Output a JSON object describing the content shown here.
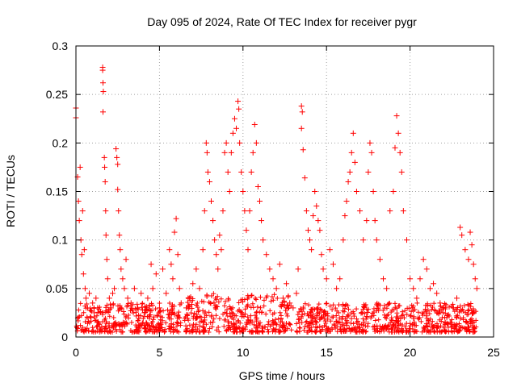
{
  "chart_data": {
    "type": "scatter",
    "title": "Day 095 of 2024, Rate Of TEC Index for receiver pygr",
    "xlabel": "GPS time / hours",
    "ylabel": "ROTI / TECUs",
    "xlim": [
      0,
      25
    ],
    "ylim": [
      0,
      0.3
    ],
    "xticks": [
      0,
      5,
      10,
      15,
      20,
      25
    ],
    "xtick_labels": [
      "0",
      "5",
      "10",
      "15",
      "20",
      "25"
    ],
    "yticks": [
      0,
      0.05,
      0.1,
      0.15,
      0.2,
      0.25,
      0.3
    ],
    "ytick_labels": [
      "0",
      "0.05",
      "0.1",
      "0.15",
      "0.2",
      "0.25",
      "0.3"
    ],
    "grid": true,
    "marker": "+",
    "marker_color": "#ff0000",
    "series": [
      {
        "name": "ROTI",
        "points": [
          [
            0.0,
            0.236
          ],
          [
            0.0,
            0.226
          ],
          [
            0.1,
            0.165
          ],
          [
            0.15,
            0.14
          ],
          [
            0.2,
            0.12
          ],
          [
            0.25,
            0.175
          ],
          [
            0.3,
            0.1
          ],
          [
            0.35,
            0.085
          ],
          [
            0.4,
            0.13
          ],
          [
            0.45,
            0.065
          ],
          [
            0.5,
            0.09
          ],
          [
            0.55,
            0.05
          ],
          [
            0.6,
            0.04
          ],
          [
            0.7,
            0.03
          ],
          [
            0.8,
            0.045
          ],
          [
            0.9,
            0.02
          ],
          [
            1.0,
            0.035
          ],
          [
            1.1,
            0.025
          ],
          [
            1.2,
            0.04
          ],
          [
            1.3,
            0.03
          ],
          [
            1.6,
            0.278
          ],
          [
            1.6,
            0.275
          ],
          [
            1.62,
            0.262
          ],
          [
            1.64,
            0.253
          ],
          [
            1.62,
            0.232
          ],
          [
            1.7,
            0.185
          ],
          [
            1.72,
            0.175
          ],
          [
            1.75,
            0.16
          ],
          [
            1.78,
            0.13
          ],
          [
            1.8,
            0.105
          ],
          [
            1.85,
            0.08
          ],
          [
            1.9,
            0.06
          ],
          [
            2.0,
            0.04
          ],
          [
            2.1,
            0.03
          ],
          [
            2.2,
            0.045
          ],
          [
            2.3,
            0.05
          ],
          [
            2.4,
            0.194
          ],
          [
            2.45,
            0.185
          ],
          [
            2.5,
            0.178
          ],
          [
            2.5,
            0.152
          ],
          [
            2.55,
            0.13
          ],
          [
            2.6,
            0.105
          ],
          [
            2.65,
            0.09
          ],
          [
            2.7,
            0.07
          ],
          [
            2.8,
            0.06
          ],
          [
            2.9,
            0.05
          ],
          [
            3.0,
            0.08
          ],
          [
            3.1,
            0.04
          ],
          [
            3.3,
            0.035
          ],
          [
            3.5,
            0.05
          ],
          [
            3.7,
            0.03
          ],
          [
            3.9,
            0.045
          ],
          [
            4.1,
            0.025
          ],
          [
            4.3,
            0.04
          ],
          [
            4.5,
            0.075
          ],
          [
            4.6,
            0.05
          ],
          [
            4.8,
            0.065
          ],
          [
            5.0,
            0.03
          ],
          [
            5.2,
            0.07
          ],
          [
            5.4,
            0.045
          ],
          [
            5.6,
            0.09
          ],
          [
            5.7,
            0.075
          ],
          [
            5.8,
            0.06
          ],
          [
            5.9,
            0.108
          ],
          [
            6.0,
            0.122
          ],
          [
            6.1,
            0.085
          ],
          [
            6.2,
            0.05
          ],
          [
            6.3,
            0.035
          ],
          [
            6.6,
            0.03
          ],
          [
            6.8,
            0.04
          ],
          [
            7.0,
            0.055
          ],
          [
            7.2,
            0.07
          ],
          [
            7.4,
            0.05
          ],
          [
            7.6,
            0.09
          ],
          [
            7.7,
            0.13
          ],
          [
            7.8,
            0.2
          ],
          [
            7.85,
            0.19
          ],
          [
            7.9,
            0.17
          ],
          [
            8.0,
            0.16
          ],
          [
            8.1,
            0.14
          ],
          [
            8.2,
            0.12
          ],
          [
            8.3,
            0.1
          ],
          [
            8.4,
            0.085
          ],
          [
            8.5,
            0.07
          ],
          [
            8.6,
            0.105
          ],
          [
            8.7,
            0.09
          ],
          [
            8.8,
            0.13
          ],
          [
            8.9,
            0.19
          ],
          [
            9.0,
            0.2
          ],
          [
            9.1,
            0.17
          ],
          [
            9.2,
            0.15
          ],
          [
            9.3,
            0.19
          ],
          [
            9.4,
            0.21
          ],
          [
            9.5,
            0.225
          ],
          [
            9.6,
            0.215
          ],
          [
            9.7,
            0.243
          ],
          [
            9.75,
            0.235
          ],
          [
            9.8,
            0.2
          ],
          [
            9.9,
            0.17
          ],
          [
            10.0,
            0.15
          ],
          [
            10.1,
            0.13
          ],
          [
            10.2,
            0.11
          ],
          [
            10.3,
            0.09
          ],
          [
            10.4,
            0.13
          ],
          [
            10.5,
            0.17
          ],
          [
            10.6,
            0.19
          ],
          [
            10.7,
            0.219
          ],
          [
            10.8,
            0.2
          ],
          [
            10.9,
            0.155
          ],
          [
            11.0,
            0.14
          ],
          [
            11.1,
            0.12
          ],
          [
            11.2,
            0.1
          ],
          [
            11.4,
            0.085
          ],
          [
            11.6,
            0.07
          ],
          [
            11.8,
            0.06
          ],
          [
            12.0,
            0.05
          ],
          [
            12.2,
            0.075
          ],
          [
            12.4,
            0.04
          ],
          [
            12.6,
            0.055
          ],
          [
            12.8,
            0.035
          ],
          [
            13.0,
            0.03
          ],
          [
            13.2,
            0.045
          ],
          [
            13.3,
            0.07
          ],
          [
            13.5,
            0.238
          ],
          [
            13.55,
            0.232
          ],
          [
            13.5,
            0.215
          ],
          [
            13.6,
            0.193
          ],
          [
            13.7,
            0.164
          ],
          [
            13.8,
            0.13
          ],
          [
            13.9,
            0.11
          ],
          [
            14.0,
            0.1
          ],
          [
            14.1,
            0.09
          ],
          [
            14.2,
            0.125
          ],
          [
            14.3,
            0.15
          ],
          [
            14.4,
            0.135
          ],
          [
            14.5,
            0.12
          ],
          [
            14.6,
            0.11
          ],
          [
            14.7,
            0.085
          ],
          [
            14.8,
            0.07
          ],
          [
            15.0,
            0.06
          ],
          [
            15.2,
            0.09
          ],
          [
            15.4,
            0.075
          ],
          [
            15.6,
            0.05
          ],
          [
            15.8,
            0.06
          ],
          [
            16.0,
            0.1
          ],
          [
            16.1,
            0.125
          ],
          [
            16.2,
            0.14
          ],
          [
            16.3,
            0.16
          ],
          [
            16.4,
            0.17
          ],
          [
            16.5,
            0.19
          ],
          [
            16.6,
            0.21
          ],
          [
            16.7,
            0.18
          ],
          [
            16.8,
            0.15
          ],
          [
            17.0,
            0.13
          ],
          [
            17.2,
            0.1
          ],
          [
            17.4,
            0.12
          ],
          [
            17.5,
            0.17
          ],
          [
            17.6,
            0.2
          ],
          [
            17.7,
            0.19
          ],
          [
            17.8,
            0.15
          ],
          [
            17.9,
            0.12
          ],
          [
            18.0,
            0.1
          ],
          [
            18.2,
            0.08
          ],
          [
            18.4,
            0.06
          ],
          [
            18.6,
            0.05
          ],
          [
            18.8,
            0.13
          ],
          [
            19.0,
            0.15
          ],
          [
            19.1,
            0.195
          ],
          [
            19.2,
            0.228
          ],
          [
            19.3,
            0.21
          ],
          [
            19.4,
            0.19
          ],
          [
            19.5,
            0.17
          ],
          [
            19.6,
            0.13
          ],
          [
            19.8,
            0.1
          ],
          [
            20.0,
            0.06
          ],
          [
            20.2,
            0.05
          ],
          [
            20.4,
            0.04
          ],
          [
            20.6,
            0.06
          ],
          [
            20.8,
            0.08
          ],
          [
            21.0,
            0.07
          ],
          [
            21.2,
            0.05
          ],
          [
            21.4,
            0.055
          ],
          [
            21.6,
            0.045
          ],
          [
            21.8,
            0.035
          ],
          [
            22.0,
            0.03
          ],
          [
            22.2,
            0.02
          ],
          [
            22.4,
            0.015
          ],
          [
            22.6,
            0.03
          ],
          [
            22.8,
            0.04
          ],
          [
            23.0,
            0.113
          ],
          [
            23.1,
            0.105
          ],
          [
            23.3,
            0.09
          ],
          [
            23.5,
            0.08
          ],
          [
            23.6,
            0.108
          ],
          [
            23.7,
            0.095
          ],
          [
            23.8,
            0.075
          ],
          [
            23.9,
            0.06
          ],
          [
            24.0,
            0.05
          ]
        ]
      }
    ],
    "baseline_band": {
      "description": "dense cluster of low ROTI values",
      "segments": [
        {
          "x_range": [
            0.0,
            6.3
          ],
          "y_range": [
            0.005,
            0.035
          ]
        },
        {
          "x_range": [
            6.5,
            12.9
          ],
          "y_range": [
            0.005,
            0.045
          ]
        },
        {
          "x_range": [
            13.2,
            24.0
          ],
          "y_range": [
            0.005,
            0.035
          ]
        }
      ]
    }
  }
}
